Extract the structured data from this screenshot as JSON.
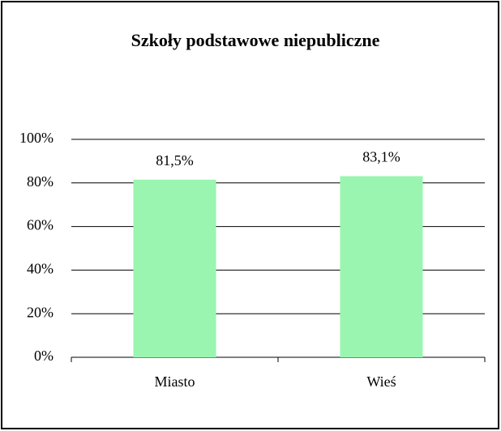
{
  "chart_data": {
    "type": "bar",
    "title": "Szkoły podstawowe niepubliczne",
    "categories": [
      "Miasto",
      "Wieś"
    ],
    "values": [
      81.5,
      83.1
    ],
    "value_labels": [
      "81,5%",
      "83,1%"
    ],
    "color": "#99f5b0",
    "ylim": [
      0,
      100
    ],
    "yticks": [
      {
        "value": 0,
        "label": "0%"
      },
      {
        "value": 20,
        "label": "20%"
      },
      {
        "value": 40,
        "label": "40%"
      },
      {
        "value": 60,
        "label": "60%"
      },
      {
        "value": 80,
        "label": "80%"
      },
      {
        "value": 100,
        "label": "100%"
      }
    ],
    "grid": true
  }
}
